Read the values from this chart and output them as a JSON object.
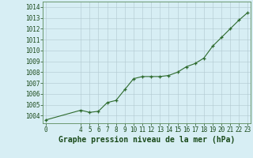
{
  "x": [
    0,
    4,
    5,
    6,
    7,
    8,
    9,
    10,
    11,
    12,
    13,
    14,
    15,
    16,
    17,
    18,
    19,
    20,
    21,
    22,
    23
  ],
  "y": [
    1003.6,
    1004.5,
    1004.3,
    1004.4,
    1005.2,
    1005.4,
    1006.4,
    1007.4,
    1007.6,
    1007.6,
    1007.6,
    1007.7,
    1008.0,
    1008.5,
    1008.8,
    1009.3,
    1010.4,
    1011.2,
    1012.0,
    1012.8,
    1013.5
  ],
  "line_color": "#2d6a2d",
  "marker": "+",
  "bg_color": "#d7eef4",
  "grid_color": "#b0c8d0",
  "xlabel": "Graphe pression niveau de la mer (hPa)",
  "xlabel_fontsize": 7,
  "ylabel_ticks": [
    1004,
    1005,
    1006,
    1007,
    1008,
    1009,
    1010,
    1011,
    1012,
    1013,
    1014
  ],
  "xlim": [
    -0.3,
    23.3
  ],
  "ylim": [
    1003.3,
    1014.5
  ],
  "xticks": [
    0,
    4,
    5,
    6,
    7,
    8,
    9,
    10,
    11,
    12,
    13,
    14,
    15,
    16,
    17,
    18,
    19,
    20,
    21,
    22,
    23
  ],
  "tick_fontsize": 5.5,
  "ylabel_fontsize": 5.5,
  "title_color": "#1a4a1a",
  "spine_color": "#5a8a5a"
}
